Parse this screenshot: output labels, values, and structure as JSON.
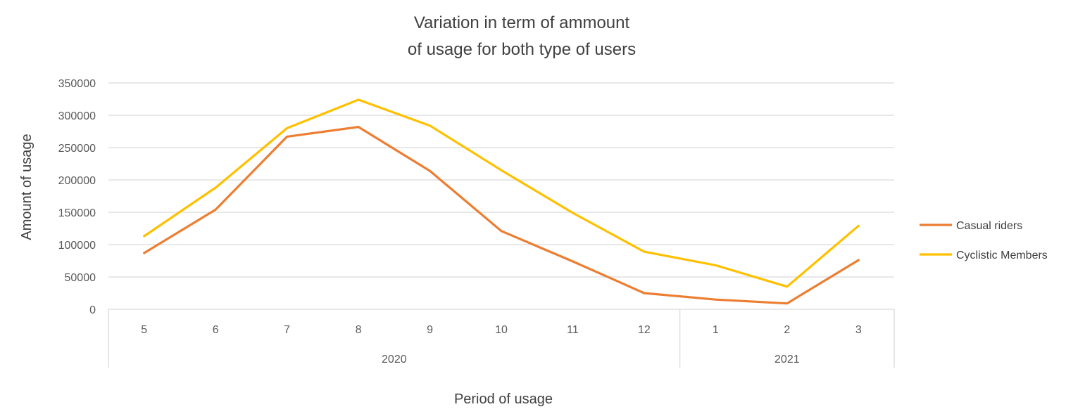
{
  "chart_data": {
    "type": "line",
    "title": [
      "Variation in term of ammount",
      "of usage for both type of users"
    ],
    "xlabel": "Period of usage",
    "ylabel": "Amount of usage",
    "ylim": [
      0,
      350000
    ],
    "yticks": [
      "0",
      "50000",
      "100000",
      "150000",
      "200000",
      "250000",
      "300000",
      "350000"
    ],
    "grid": true,
    "legend_position": "right",
    "categories": [
      "5",
      "6",
      "7",
      "8",
      "9",
      "10",
      "11",
      "12",
      "1",
      "2",
      "3"
    ],
    "groups": [
      {
        "label": "2020",
        "count": 8
      },
      {
        "label": "2021",
        "count": 3
      }
    ],
    "series": [
      {
        "name": "Casual riders",
        "color": "#ED7D31",
        "values": [
          87000,
          154000,
          267000,
          282000,
          214000,
          121000,
          74000,
          25000,
          15000,
          9000,
          76000
        ]
      },
      {
        "name": "Cyclistic Members",
        "color": "#FFC000",
        "values": [
          113000,
          188000,
          280000,
          324000,
          284000,
          215000,
          149000,
          89000,
          68000,
          35000,
          129000
        ]
      }
    ]
  }
}
